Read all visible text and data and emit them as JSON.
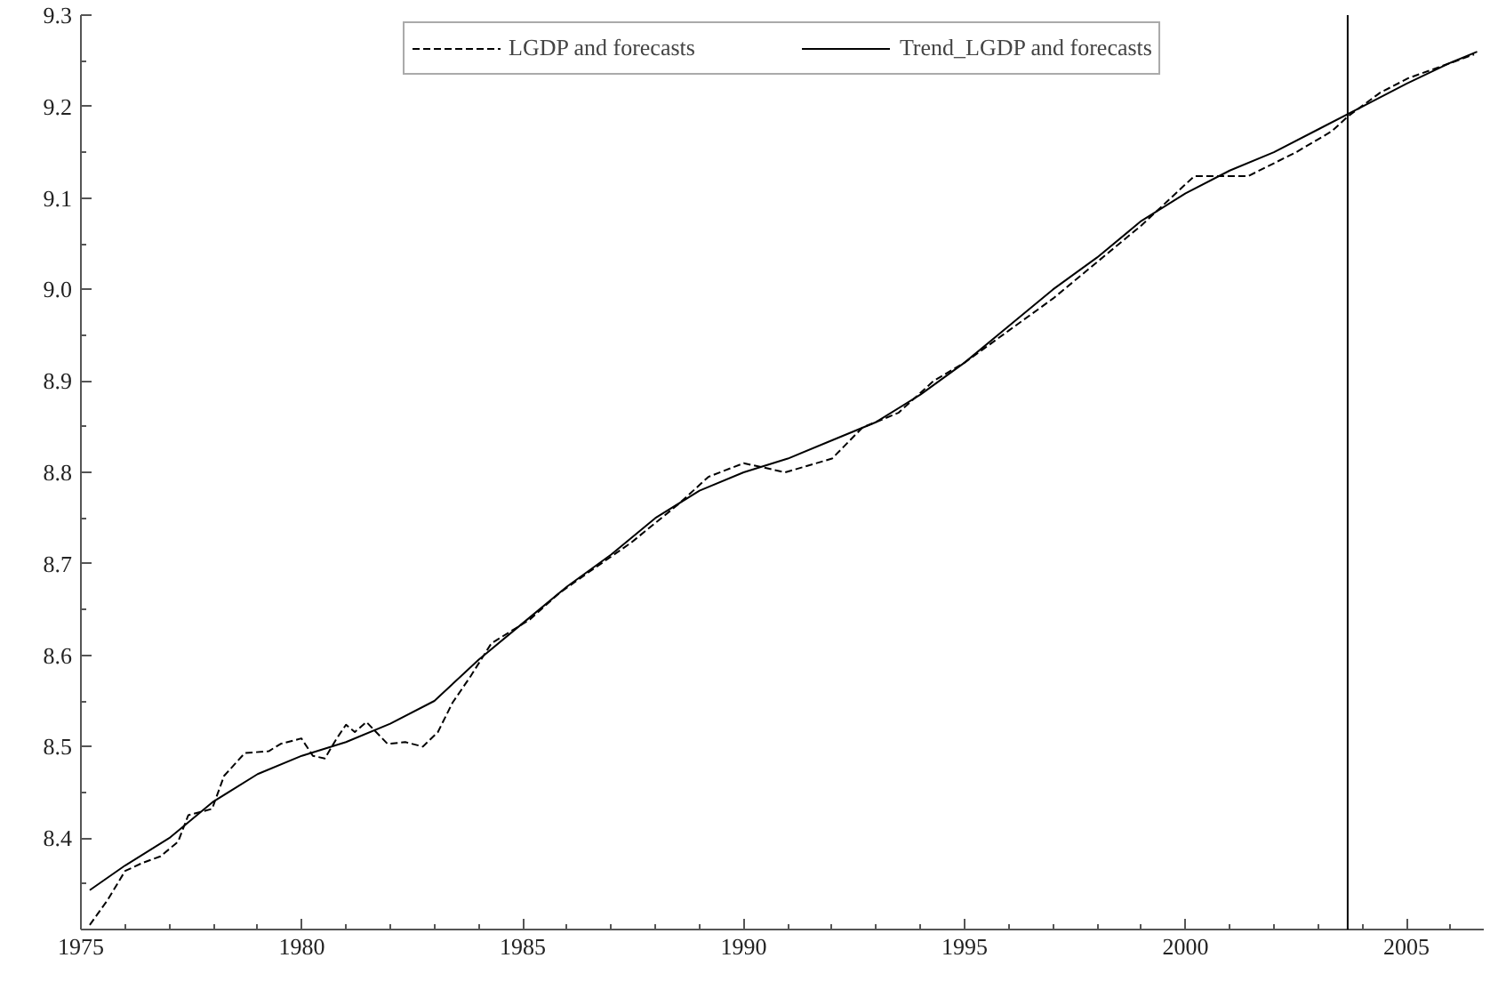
{
  "chart_data": {
    "type": "line",
    "xlim": [
      1975,
      2006.75
    ],
    "ylim": [
      8.3,
      9.3
    ],
    "xticks": [
      1975,
      1980,
      1985,
      1990,
      1995,
      2000,
      2005
    ],
    "yticks": [
      8.4,
      8.5,
      8.6,
      8.7,
      8.8,
      8.9,
      {
        "value": 9.0,
        "label": "9.0"
      },
      9.1,
      9.2,
      9.3
    ],
    "grid": false,
    "legend": "top",
    "marker": "none",
    "series": [
      {
        "name": "LGDP and forecasts",
        "color": "#000000",
        "line_style": "dashed",
        "x": [
          1975.2,
          1975.6,
          1976.0,
          1976.4,
          1976.8,
          1977.2,
          1977.43,
          1977.97,
          1978.24,
          1978.71,
          1979.25,
          1979.52,
          1979.99,
          1980.25,
          1980.52,
          1980.79,
          1981.0,
          1981.2,
          1981.46,
          1981.94,
          1982.34,
          1982.74,
          1983.08,
          1983.41,
          1983.82,
          1984.29,
          1985.16,
          1985.83,
          1986.5,
          1987.45,
          1988.52,
          1989.2,
          1990.0,
          1990.94,
          1992.0,
          1992.69,
          1993.5,
          1994.3,
          1995.0,
          1996.0,
          1997.0,
          1998.0,
          1999.0,
          2000.2,
          2001.42,
          2002.5,
          2003.31,
          2003.67,
          2004.4,
          2005.04,
          2006.53
        ],
        "values": [
          8.305,
          8.332,
          8.364,
          8.373,
          8.38,
          8.396,
          8.425,
          8.432,
          8.468,
          8.493,
          8.495,
          8.503,
          8.509,
          8.49,
          8.487,
          8.509,
          8.524,
          8.516,
          8.527,
          8.503,
          8.505,
          8.5,
          8.516,
          8.548,
          8.577,
          8.613,
          8.639,
          8.668,
          8.691,
          8.723,
          8.765,
          8.795,
          8.81,
          8.8,
          8.815,
          8.849,
          8.865,
          8.9,
          8.92,
          8.955,
          8.99,
          9.03,
          9.07,
          9.124,
          9.124,
          9.15,
          9.173,
          9.189,
          9.215,
          9.231,
          9.257
        ]
      },
      {
        "name": "Trend_LGDP and forecasts",
        "color": "#000000",
        "line_style": "solid",
        "x": [
          1975.2,
          1976,
          1977,
          1978,
          1979,
          1980,
          1981,
          1982,
          1983,
          1984,
          1985,
          1986,
          1987,
          1988,
          1989,
          1990,
          1991,
          1992,
          1993,
          1994,
          1995,
          1996,
          1997,
          1998,
          1999,
          2000,
          2001,
          2002,
          2003,
          2004,
          2005,
          2006,
          2006.6
        ],
        "values": [
          8.343,
          8.37,
          8.4,
          8.44,
          8.47,
          8.49,
          8.505,
          8.525,
          8.55,
          8.595,
          8.635,
          8.675,
          8.71,
          8.75,
          8.78,
          8.8,
          8.815,
          8.835,
          8.855,
          8.885,
          8.92,
          8.96,
          9.0,
          9.035,
          9.075,
          9.105,
          9.13,
          9.15,
          9.175,
          9.2,
          9.225,
          9.248,
          9.26
        ]
      }
    ],
    "ref_lines": [
      {
        "axis": "x",
        "value": 2003.67,
        "color": "#000000",
        "line_style": "solid"
      }
    ]
  }
}
